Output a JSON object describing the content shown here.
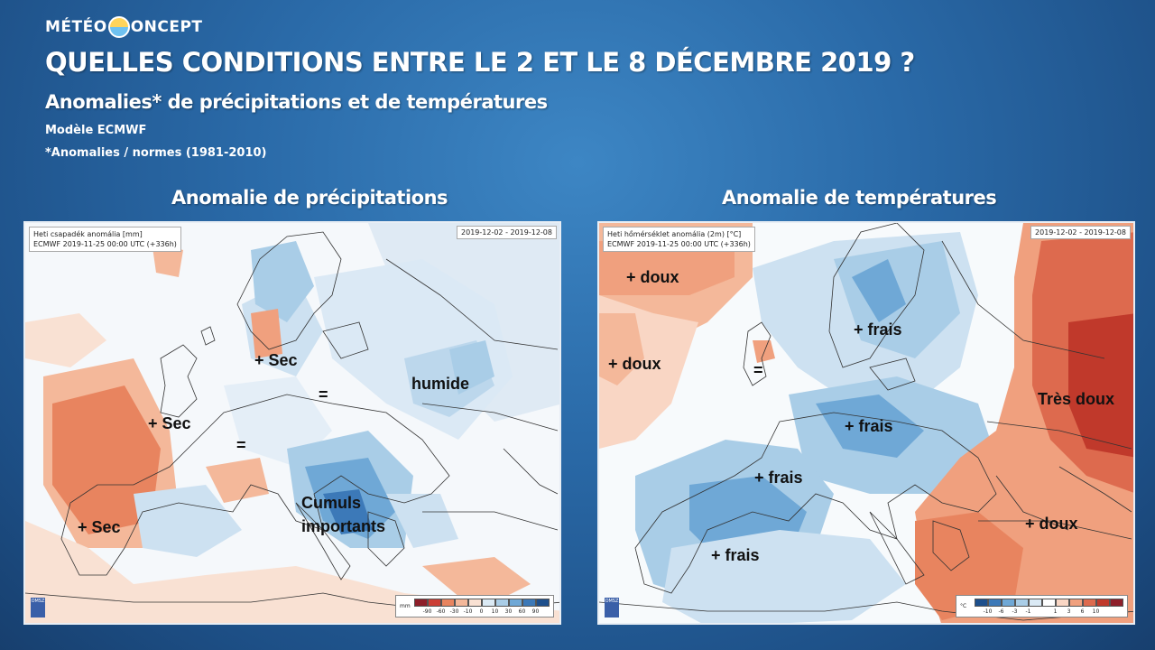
{
  "brand": {
    "left": "MÉTÉO",
    "right": "ONCEPT"
  },
  "title": "QUELLES CONDITIONS ENTRE LE 2 ET LE 8 DÉCEMBRE 2019 ?",
  "subtitle": "Anomalies* de précipitations et de températures",
  "model": "Modèle ECMWF",
  "norms": "*Anomalies / normes (1981-2010)",
  "precip": {
    "panel_title": "Anomalie de précipitations",
    "header_line1": "Heti csapadék anomália [mm]",
    "header_line2": "ECMWF 2019-11-25 00:00 UTC (+336h)",
    "date_range": "2019-12-02 - 2019-12-08",
    "logo": "OMSZ",
    "legend_unit": "mm",
    "legend_labels": [
      "-90",
      "-60",
      "-30",
      "-10",
      "0",
      "10",
      "30",
      "60",
      "90"
    ],
    "legend_colors": [
      "#8e1f2a",
      "#cc3f36",
      "#e8845f",
      "#f4b89a",
      "#f9e1d3",
      "#dbeaf5",
      "#a9cde7",
      "#6fa8d6",
      "#3c79b8",
      "#1d4f8c"
    ],
    "annotations": [
      "+ Sec",
      "+ Sec",
      "+ Sec",
      "=",
      "=",
      "humide",
      "Cumuls",
      "importants"
    ]
  },
  "temp": {
    "panel_title": "Anomalie de températures",
    "header_line1": "Heti hőmérséklet anomália (2m) [°C]",
    "header_line2": "ECMWF 2019-11-25 00:00 UTC (+336h)",
    "date_range": "2019-12-02 - 2019-12-08",
    "logo": "OMSZ",
    "legend_unit": "°C",
    "legend_labels": [
      "-10",
      "-6",
      "-3",
      "-1",
      "",
      "1",
      "3",
      "6",
      "10"
    ],
    "legend_colors": [
      "#1d4f8c",
      "#3c79b8",
      "#6fa8d6",
      "#a9cde7",
      "#dbeaf5",
      "#ffffff",
      "#f9d6c4",
      "#f0a07e",
      "#dd6a4e",
      "#c0392b",
      "#8e1f2a"
    ],
    "annotations": [
      "+ doux",
      "+ doux",
      "=",
      "+ frais",
      "+ frais",
      "+ frais",
      "+ frais",
      "Très doux",
      "+ doux"
    ]
  }
}
